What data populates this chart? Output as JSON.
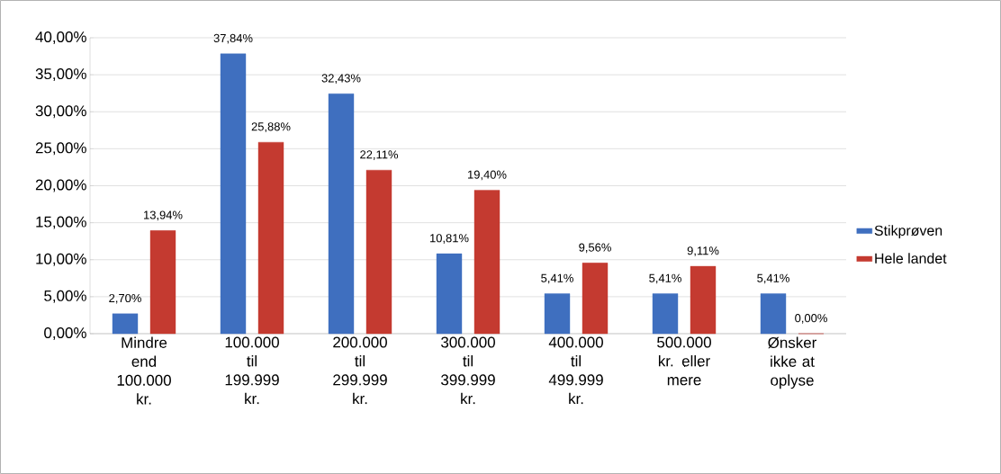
{
  "chart_data": {
    "type": "bar",
    "categories": [
      "Mindre end 100.000 kr.",
      "100.000 til 199.999 kr.",
      "200.000 til 299.999 kr.",
      "300.000 til 399.999 kr.",
      "400.000 til 499.999 kr.",
      "500.000 kr. eller mere",
      "Ønsker ikke at oplyse"
    ],
    "series": [
      {
        "name": "Stikprøven",
        "color": "#3f6fbf",
        "values": [
          2.7,
          37.84,
          32.43,
          10.81,
          5.41,
          5.41,
          5.41
        ],
        "value_labels": [
          "2,70%",
          "37,84%",
          "32,43%",
          "10,81%",
          "5,41%",
          "5,41%",
          "5,41%"
        ]
      },
      {
        "name": "Hele landet",
        "color": "#c43a30",
        "values": [
          13.94,
          25.88,
          22.11,
          19.4,
          9.56,
          9.11,
          0.0
        ],
        "value_labels": [
          "13,94%",
          "25,88%",
          "22,11%",
          "19,40%",
          "9,56%",
          "9,11%",
          "0,00%"
        ]
      }
    ],
    "ylim": [
      0,
      40
    ],
    "yticks": [
      {
        "value": 0,
        "label": "0,00%"
      },
      {
        "value": 5,
        "label": "5,00%"
      },
      {
        "value": 10,
        "label": "10,00%"
      },
      {
        "value": 15,
        "label": "15,00%"
      },
      {
        "value": 20,
        "label": "20,00%"
      },
      {
        "value": 25,
        "label": "25,00%"
      },
      {
        "value": 30,
        "label": "30,00%"
      },
      {
        "value": 35,
        "label": "35,00%"
      },
      {
        "value": 40,
        "label": "40,00%"
      }
    ],
    "grid": "y",
    "legend": "right"
  }
}
